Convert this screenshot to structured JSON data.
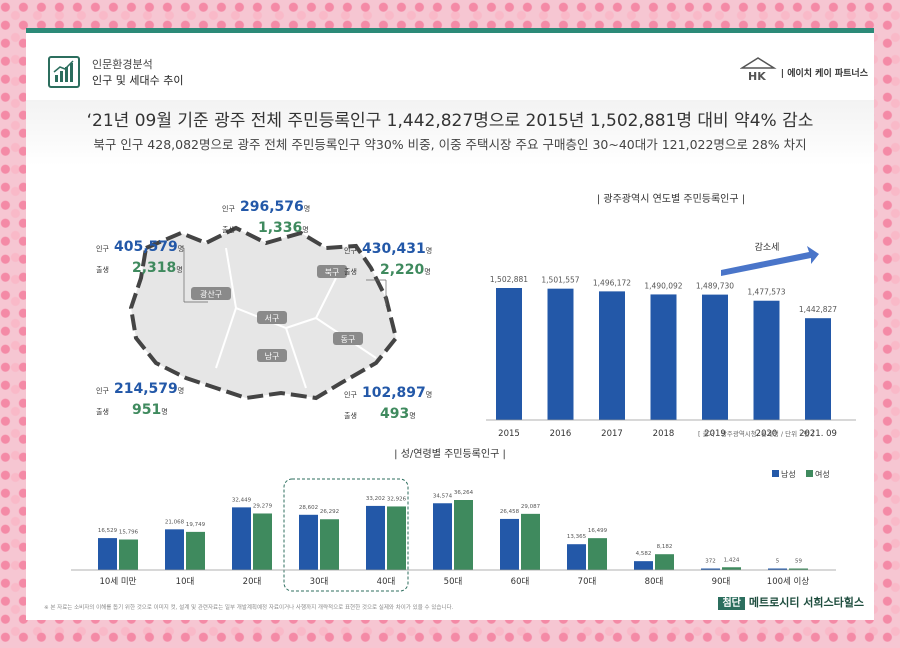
{
  "header": {
    "category": "인문환경분석",
    "section": "인구 및 세대수 추이",
    "logo_mark": "HK",
    "logo_text": "| 에이치 케이 파트너스",
    "icon": "bar-chart-icon"
  },
  "headline": {
    "title": "‘21년 09월 기준 광주 전체 주민등록인구 1,442,827명으로 2015년 1,502,881명 대비 약4% 감소",
    "subtitle": "북구 인구 428,082명으로 광주 전체 주민등록인구 약30% 비중, 이중 주택시장 주요 구매층인 30~40대가 121,022명으로 28% 차지"
  },
  "map": {
    "districts": [
      {
        "name": "광산구",
        "pop_label": "인구",
        "pop": "405,579",
        "unit": "명",
        "birth_label": "출생",
        "births": "2,318",
        "birth_unit": "명"
      },
      {
        "name": "북구",
        "pop_label": "인구",
        "pop": "430,431",
        "unit": "명",
        "birth_label": "출생",
        "births": "2,220",
        "birth_unit": "명"
      },
      {
        "name": "서구",
        "pop_label": "인구",
        "pop": "296,576",
        "unit": "명",
        "birth_label": "출생",
        "births": "1,336",
        "birth_unit": "명"
      },
      {
        "name": "남구",
        "pop_label": "인구",
        "pop": "214,579",
        "unit": "명",
        "birth_label": "출생",
        "births": "951",
        "birth_unit": "명"
      },
      {
        "name": "동구",
        "pop_label": "인구",
        "pop": "102,897",
        "unit": "명",
        "birth_label": "출생",
        "births": "493",
        "birth_unit": "명"
      }
    ]
  },
  "chart_data": [
    {
      "type": "bar",
      "title": "| 광주광역시 연도별 주민등록인구 |",
      "categories": [
        "2015",
        "2016",
        "2017",
        "2018",
        "2019",
        "2020",
        "2021. 09"
      ],
      "values": [
        1502881,
        1501557,
        1496172,
        1490092,
        1489730,
        1477573,
        1442827
      ],
      "value_labels": [
        "1,502,881",
        "1,501,557",
        "1,496,172",
        "1,490,092",
        "1,489,730",
        "1,477,573",
        "1,442,827"
      ],
      "annotation": "감소세",
      "source": "[ 출처 : 광주광역시청, 통계청 / 단위 : 명 ]",
      "color": "#2358a8"
    },
    {
      "type": "bar",
      "title": "| 성/연령별 주민등록인구 |",
      "categories": [
        "10세 미만",
        "10대",
        "20대",
        "30대",
        "40대",
        "50대",
        "60대",
        "70대",
        "80대",
        "90대",
        "100세 이상"
      ],
      "series": [
        {
          "name": "남성",
          "color": "#2358a8",
          "values": [
            16529,
            21068,
            32449,
            28602,
            33202,
            34574,
            26458,
            13365,
            4582,
            372,
            5
          ],
          "labels": [
            "16,529",
            "21,068",
            "32,449",
            "28,602",
            "33,202",
            "34,574",
            "26,458",
            "13,365",
            "4,582",
            "372",
            "5"
          ]
        },
        {
          "name": "여성",
          "color": "#3f8a5e",
          "values": [
            15796,
            19749,
            29279,
            26292,
            32926,
            36264,
            29087,
            16499,
            8182,
            1424,
            59
          ],
          "labels": [
            "15,796",
            "19,749",
            "29,279",
            "26,292",
            "32,926",
            "36,264",
            "29,087",
            "16,499",
            "8,182",
            "1,424",
            "59"
          ]
        }
      ],
      "legend": "top-right",
      "highlight": [
        "30대",
        "40대"
      ]
    }
  ],
  "footer": {
    "note": "※ 본 자료는 소비자의 이해를 돕기 위한 것으로 이미지 컷, 설계 및 관련자료는 일부 개발계획예정 자료이거나 사행까지 개략적으로 표현한 것으로 실제와 차이가 있을 수 있습니다.",
    "brand_badge": "첨단",
    "brand_name": "메트로시티 서희스타힐스"
  }
}
